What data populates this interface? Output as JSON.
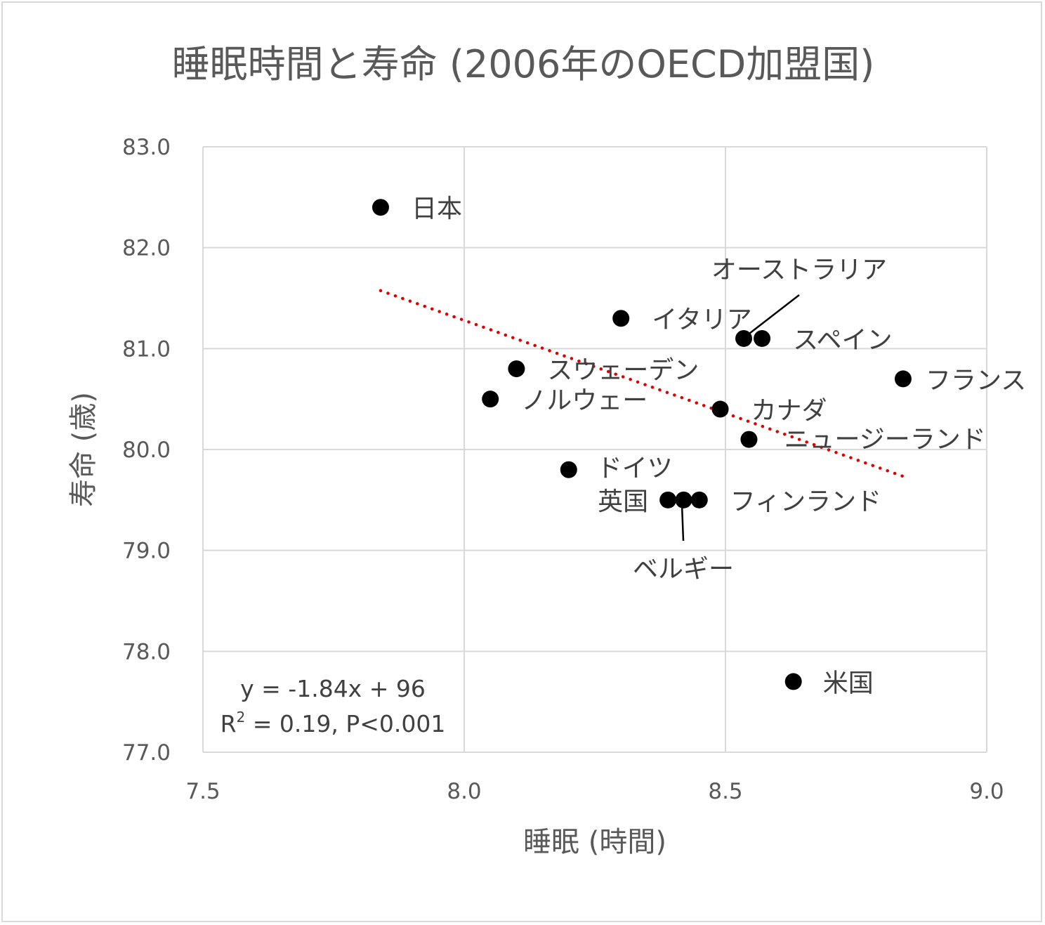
{
  "chart_data": {
    "type": "scatter",
    "title": "睡眠時間と寿命 (2006年のOECD加盟国)",
    "xlabel": "睡眠 (時間)",
    "ylabel": "寿命 (歳)",
    "xlim": [
      7.5,
      9.0
    ],
    "ylim": [
      77.0,
      83.0
    ],
    "x_ticks": [
      "7.5",
      "8.0",
      "8.5",
      "9.0"
    ],
    "y_ticks": [
      "77.0",
      "78.0",
      "79.0",
      "80.0",
      "81.0",
      "82.0",
      "83.0"
    ],
    "grid": true,
    "points": [
      {
        "label": "日本",
        "x": 7.84,
        "y": 82.4
      },
      {
        "label": "イタリア",
        "x": 8.3,
        "y": 81.3
      },
      {
        "label": "オーストラリア",
        "x": 8.535,
        "y": 81.1
      },
      {
        "label": "スペイン",
        "x": 8.57,
        "y": 81.1
      },
      {
        "label": "スウェーデン",
        "x": 8.1,
        "y": 80.8
      },
      {
        "label": "フランス",
        "x": 8.84,
        "y": 80.7
      },
      {
        "label": "ノルウェー",
        "x": 8.05,
        "y": 80.5
      },
      {
        "label": "カナダ",
        "x": 8.49,
        "y": 80.4
      },
      {
        "label": "ニュージーランド",
        "x": 8.545,
        "y": 80.1
      },
      {
        "label": "ドイツ",
        "x": 8.2,
        "y": 79.8
      },
      {
        "label": "英国",
        "x": 8.39,
        "y": 79.5
      },
      {
        "label": "ベルギー",
        "x": 8.42,
        "y": 79.5
      },
      {
        "label": "フィンランド",
        "x": 8.45,
        "y": 79.5
      },
      {
        "label": "米国",
        "x": 8.63,
        "y": 77.7
      }
    ],
    "trendline": {
      "style": "dotted",
      "color": "#e00000",
      "x_range": [
        7.84,
        8.84
      ],
      "slope": -1.84,
      "intercept": 96,
      "equation": "y = -1.84x + 96",
      "stats": {
        "r2": "R",
        "r2_sup": "2",
        "r2_rest": " = 0.19, P<0.001"
      }
    },
    "marker_color": "#000000",
    "grid_color": "#d9d9d9"
  }
}
